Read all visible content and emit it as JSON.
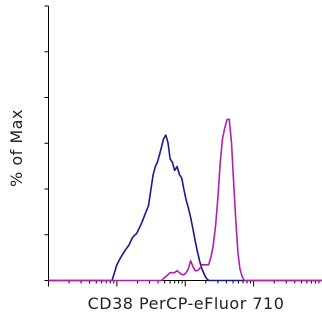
{
  "chart_data": {
    "type": "line",
    "title": "",
    "xlabel": "CD38 PerCP-eFluor 710",
    "ylabel": "% of Max",
    "x_scale": "log",
    "ylim": [
      0,
      100
    ],
    "grid": false,
    "legend": "none",
    "x": [
      10,
      18,
      25,
      32,
      40,
      50,
      60,
      70,
      85,
      100,
      115,
      130,
      150,
      170,
      195,
      215,
      235,
      260,
      290,
      320,
      340,
      365,
      390,
      420,
      450,
      480,
      520,
      560,
      600,
      650,
      700,
      760,
      820,
      890,
      960,
      1030,
      1110,
      1200,
      1300,
      1400,
      1500,
      1620,
      1750,
      1900,
      2050,
      2200,
      2380,
      2570,
      2780,
      3000,
      3250,
      3500,
      3800,
      4100,
      4400,
      4750,
      5100,
      5500,
      5900,
      6300,
      6800,
      7300,
      7800,
      8400,
      9000,
      9700,
      10400,
      11200,
      12000,
      13000,
      14000,
      16000,
      20000,
      30000,
      50000,
      100000
    ],
    "series": [
      {
        "color": "#1a1a8f",
        "values": [
          0,
          0,
          0,
          0,
          0,
          0,
          0,
          0,
          0,
          8,
          12,
          15,
          18,
          22,
          24,
          27,
          30,
          34,
          38,
          48,
          54,
          58,
          60,
          64,
          68,
          72,
          74,
          70,
          62,
          60,
          56,
          58,
          54,
          52,
          46,
          41,
          37,
          32,
          26,
          20,
          15,
          10,
          6,
          3,
          1,
          0,
          0,
          0,
          0,
          0,
          0,
          0,
          0,
          0,
          0,
          0,
          0,
          0,
          0,
          0,
          0,
          0,
          0,
          0,
          0,
          0,
          0,
          0,
          0,
          0,
          0,
          0,
          0,
          0,
          0,
          0
        ]
      },
      {
        "color": "#b020b0",
        "values": [
          0,
          0,
          0,
          0,
          0,
          0,
          0,
          0,
          0,
          0,
          0,
          0,
          0,
          0,
          0,
          0,
          0,
          0,
          0,
          0,
          0,
          0,
          0,
          0,
          0,
          1,
          2,
          3,
          4,
          4,
          4,
          5,
          4,
          3,
          3,
          4,
          6,
          10,
          7,
          5,
          5,
          6,
          8,
          8,
          8,
          8,
          12,
          18,
          28,
          42,
          60,
          72,
          78,
          82,
          82,
          70,
          50,
          30,
          14,
          6,
          2,
          0,
          0,
          0,
          0,
          0,
          0,
          0,
          0,
          0,
          0,
          0,
          0,
          0,
          0,
          0
        ]
      }
    ]
  }
}
